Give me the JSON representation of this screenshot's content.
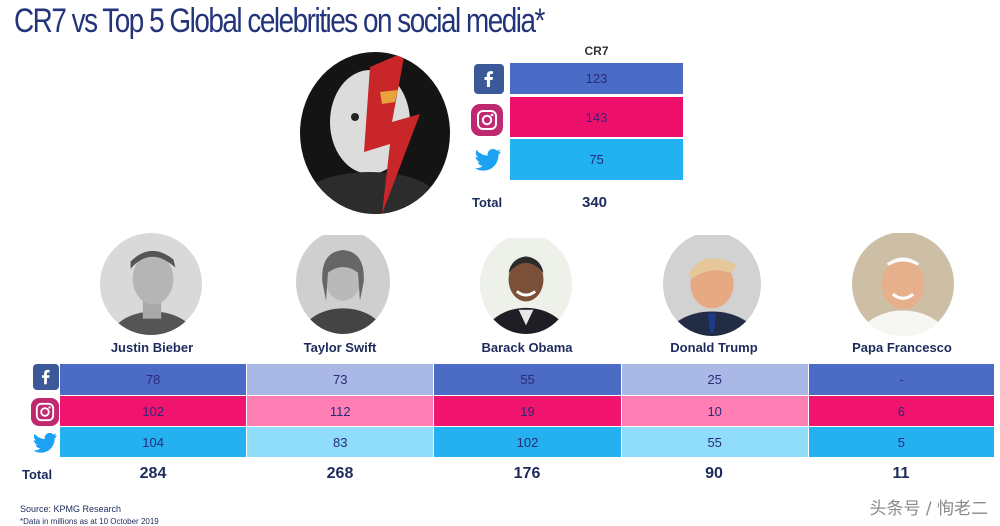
{
  "title": "CR7 vs Top 5 Global celebrities on social media*",
  "colors": {
    "facebook": "#4c6bc4",
    "facebook_light": "#aab8e6",
    "instagram": "#f0146e",
    "instagram_light": "#ff7fb4",
    "twitter": "#25b0ef",
    "twitter_light": "#8fdcfb",
    "text": "#1d2b5c"
  },
  "icons": [
    "facebook-icon",
    "instagram-icon",
    "twitter-icon"
  ],
  "cr7": {
    "name": "CR7",
    "total_label": "Total",
    "total": "340"
  },
  "grid": {
    "total_label": "Total",
    "totals": [
      "284",
      "268",
      "176",
      "90",
      "11"
    ]
  },
  "chart_data": [
    {
      "type": "table",
      "title": "CR7",
      "rows": [
        "Facebook",
        "Instagram",
        "Twitter"
      ],
      "values": [
        123,
        143,
        75
      ],
      "total": 340
    },
    {
      "type": "table",
      "categories": [
        "Justin Bieber",
        "Taylor Swift",
        "Barack Obama",
        "Donald Trump",
        "Papa Francesco"
      ],
      "series": [
        {
          "icon": "facebook-icon",
          "values": [
            "78",
            "73",
            "55",
            "25",
            "-"
          ]
        },
        {
          "icon": "instagram-icon",
          "values": [
            "102",
            "112",
            "19",
            "10",
            "6"
          ]
        },
        {
          "icon": "twitter-icon",
          "values": [
            "104",
            "83",
            "102",
            "55",
            "5"
          ]
        }
      ],
      "totals": [
        284,
        268,
        176,
        90,
        11
      ]
    }
  ],
  "footer": {
    "source": "Source: KPMG Research",
    "note": "*Data in millions as at 10 October 2019"
  },
  "watermark": "头条号 / 恂老二"
}
